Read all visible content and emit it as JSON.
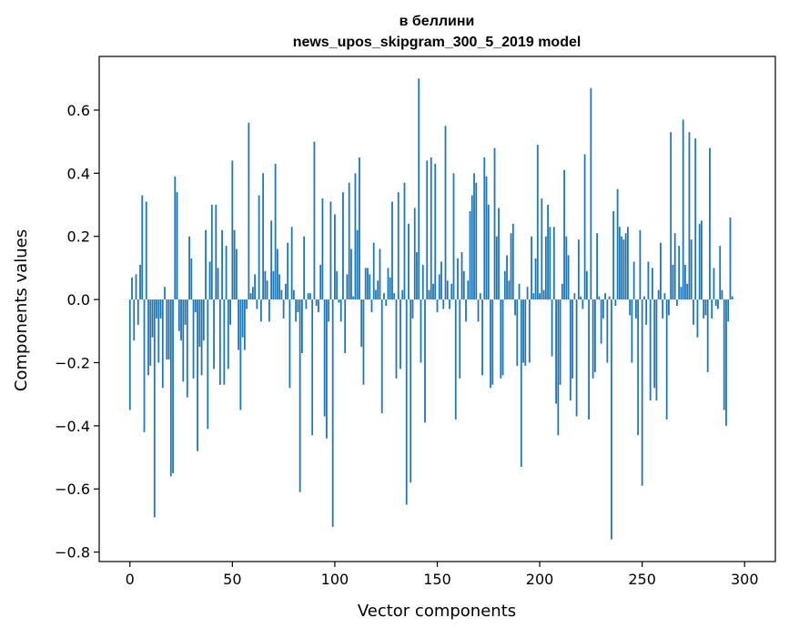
{
  "chart_data": {
    "type": "bar",
    "title": "в беллини",
    "subtitle": "news_upos_skipgram_300_5_2019 model",
    "xlabel": "Vector components",
    "ylabel": "Components values",
    "xlim": [
      -15,
      315
    ],
    "ylim": [
      -0.83,
      0.77
    ],
    "xticks": [
      0,
      50,
      100,
      150,
      200,
      250,
      300
    ],
    "xtick_labels": [
      "0",
      "50",
      "100",
      "150",
      "200",
      "250",
      "300"
    ],
    "yticks": [
      -0.8,
      -0.6,
      -0.4,
      -0.2,
      0.0,
      0.2,
      0.4,
      0.6
    ],
    "ytick_labels": [
      "−0.8",
      "−0.6",
      "−0.4",
      "−0.2",
      "0.0",
      "0.2",
      "0.4",
      "0.6"
    ],
    "grid": false,
    "series": [
      {
        "color": "#1f77b4",
        "x_start": 0,
        "values": [
          -0.35,
          0.07,
          -0.13,
          0.08,
          -0.08,
          0.11,
          0.33,
          -0.42,
          0.31,
          -0.24,
          -0.21,
          -0.12,
          -0.69,
          -0.06,
          -0.2,
          -0.06,
          -0.28,
          0.04,
          -0.19,
          -0.19,
          -0.56,
          -0.55,
          0.39,
          0.34,
          -0.1,
          -0.13,
          -0.26,
          -0.08,
          -0.31,
          0.2,
          0.13,
          -0.25,
          -0.04,
          -0.48,
          -0.15,
          -0.24,
          -0.13,
          0.22,
          -0.41,
          0.12,
          0.3,
          -0.22,
          0.3,
          0.1,
          -0.27,
          0.22,
          -0.27,
          0.17,
          -0.22,
          -0.08,
          0.44,
          0.22,
          0.16,
          -0.16,
          -0.35,
          -0.12,
          -0.16,
          -0.03,
          0.56,
          0.02,
          0.04,
          0.08,
          -0.03,
          0.33,
          -0.07,
          0.4,
          0.09,
          0.06,
          -0.07,
          0.25,
          0.09,
          0.43,
          0.16,
          0.08,
          0.03,
          -0.06,
          0.05,
          0.18,
          -0.28,
          0.23,
          0.03,
          -0.07,
          -0.04,
          -0.61,
          -0.17,
          0.2,
          -0.03,
          0.02,
          0.02,
          -0.43,
          0.5,
          -0.02,
          -0.04,
          0.11,
          0.32,
          -0.37,
          -0.44,
          -0.07,
          0.31,
          -0.72,
          0.27,
          0.09,
          -0.01,
          -0.07,
          0.34,
          -0.17,
          0.08,
          0.37,
          0.16,
          0.01,
          0.4,
          0.22,
          0.45,
          -0.15,
          -0.27,
          0.1,
          0.1,
          0.08,
          -0.04,
          0.18,
          0.03,
          0.06,
          0.16,
          -0.36,
          0.02,
          -0.02,
          0.1,
          0.07,
          0.31,
          0.02,
          -0.25,
          0.34,
          -0.22,
          0.03,
          0.37,
          -0.65,
          0.24,
          -0.58,
          -0.06,
          0.29,
          0.15,
          0.7,
          -0.2,
          0.11,
          -0.39,
          0.44,
          0.03,
          0.45,
          0.05,
          0.43,
          -0.04,
          0.08,
          0.12,
          -0.03,
          0.55,
          0.06,
          -0.03,
          0.05,
          0.4,
          -0.38,
          0.13,
          -0.25,
          0.15,
          0.09,
          -0.07,
          0.06,
          0.28,
          0.33,
          0.4,
          0.37,
          -0.07,
          0.02,
          -0.24,
          0.45,
          0.39,
          0.3,
          -0.28,
          -0.27,
          0.48,
          0.2,
          0.29,
          -0.25,
          -0.24,
          0.09,
          0.14,
          0.06,
          0.21,
          0.24,
          -0.05,
          -0.21,
          0.05,
          -0.53,
          -0.2,
          -0.21,
          0.04,
          -0.2,
          0.2,
          0.02,
          0.13,
          0.49,
          0.02,
          0.32,
          0.03,
          0.2,
          0.3,
          0.23,
          -0.18,
          0.23,
          -0.33,
          -0.43,
          -0.27,
          0.05,
          0.41,
          0.2,
          0.14,
          -0.32,
          -0.25,
          0.02,
          -0.37,
          0.19,
          0.01,
          -0.03,
          0.46,
          0.09,
          -0.38,
          0.67,
          -0.25,
          -0.23,
          0.21,
          0.01,
          -0.14,
          -0.06,
          0.02,
          -0.2,
          0.01,
          -0.76,
          0.28,
          -0.02,
          0.35,
          0.23,
          0.2,
          0.19,
          0.21,
          0.23,
          -0.05,
          -0.2,
          0.12,
          -0.06,
          -0.43,
          0.22,
          -0.59,
          0.01,
          -0.08,
          0.12,
          -0.32,
          0.1,
          -0.28,
          -0.32,
          0.03,
          0.18,
          -0.06,
          0.02,
          -0.38,
          -0.05,
          0.53,
          0.11,
          0.21,
          -0.02,
          0.17,
          0.04,
          0.57,
          0.11,
          0.05,
          0.53,
          0.19,
          -0.08,
          0.51,
          -0.12,
          0.24,
          0.25,
          -0.06,
          -0.05,
          -0.23,
          0.48,
          -0.06,
          0.1,
          -0.02,
          -0.03,
          0.17,
          0.03,
          -0.35,
          -0.4,
          -0.07,
          0.26,
          0.01
        ]
      }
    ]
  }
}
